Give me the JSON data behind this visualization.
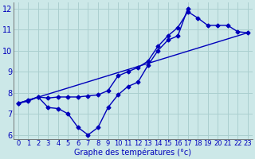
{
  "title": "Graphe des températures (°c)",
  "bg_color": "#cce8e8",
  "grid_color": "#aacfcf",
  "line_color": "#0000bb",
  "xlim": [
    -0.5,
    23.5
  ],
  "ylim": [
    5.8,
    12.3
  ],
  "xticks": [
    0,
    1,
    2,
    3,
    4,
    5,
    6,
    7,
    8,
    9,
    10,
    11,
    12,
    13,
    14,
    15,
    16,
    17,
    18,
    19,
    20,
    21,
    22,
    23
  ],
  "yticks": [
    6,
    7,
    8,
    9,
    10,
    11,
    12
  ],
  "series1_x": [
    0,
    1,
    2,
    3,
    4,
    5,
    6,
    7,
    8,
    9,
    10,
    11,
    12,
    13,
    14,
    15,
    16,
    17
  ],
  "series1_y": [
    7.5,
    7.65,
    7.8,
    7.3,
    7.25,
    7.0,
    6.35,
    6.0,
    6.35,
    7.3,
    7.9,
    8.3,
    8.5,
    9.3,
    10.0,
    10.5,
    10.7,
    12.0
  ],
  "series2_x": [
    0,
    1,
    2,
    3,
    4,
    5,
    6,
    7,
    8,
    9,
    10,
    11,
    12,
    13,
    14,
    15,
    16,
    17,
    18,
    19,
    20,
    21,
    22,
    23
  ],
  "series2_y": [
    7.5,
    7.6,
    7.8,
    7.75,
    7.8,
    7.8,
    7.8,
    7.85,
    7.9,
    8.1,
    8.8,
    9.0,
    9.2,
    9.5,
    10.2,
    10.7,
    11.1,
    11.85,
    11.55,
    11.2,
    11.2,
    11.2,
    10.9,
    10.85
  ],
  "series3_x": [
    0,
    23
  ],
  "series3_y": [
    7.5,
    10.85
  ],
  "markersize": 2.5,
  "linewidth": 1.0,
  "xlabel_fontsize": 7,
  "tick_fontsize": 6
}
